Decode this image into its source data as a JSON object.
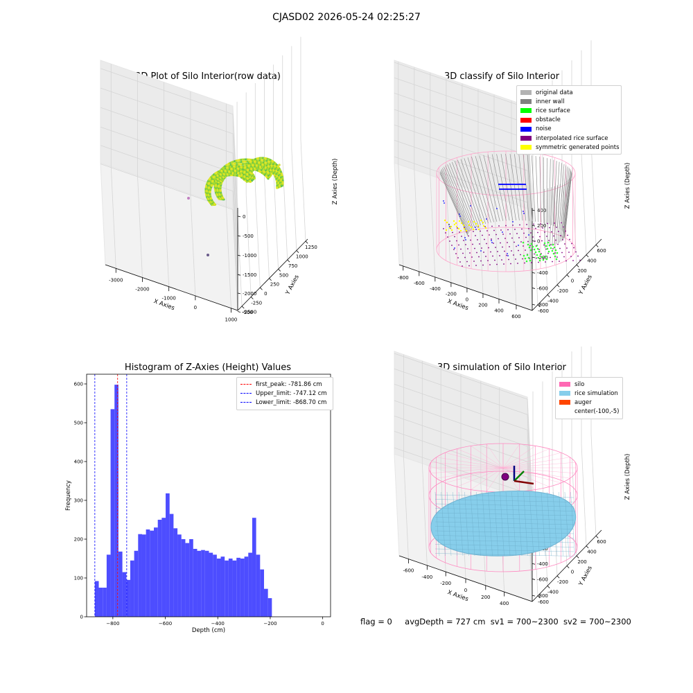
{
  "suptitle": "CJASD02 2026-05-24 02:25:27",
  "panels": {
    "raw": {
      "title": "3D Plot of Silo Interior(row data)",
      "xlabel": "X Axies",
      "ylabel": "Y Axies",
      "zlabel": "Z Axies (Depth)",
      "xticks": [
        "-3000",
        "-2000",
        "-1000",
        "0",
        "1000"
      ],
      "yticks": [
        "-500",
        "-250",
        "0",
        "250",
        "500",
        "750",
        "1000",
        "1250"
      ],
      "zticks": [
        "0",
        "-500",
        "-1000",
        "-1500",
        "-2000",
        "-2500"
      ]
    },
    "classify": {
      "title": "3D classify of Silo Interior",
      "xlabel": "X Axies",
      "ylabel": "Y Axies",
      "zlabel": "Z Axies (Depth)",
      "xticks": [
        "-800",
        "-600",
        "-400",
        "-200",
        "0",
        "200",
        "400",
        "600"
      ],
      "yticks": [
        "-600",
        "-400",
        "-200",
        "0",
        "200",
        "400",
        "600"
      ],
      "zticks": [
        "400",
        "200",
        "0",
        "-200",
        "-400",
        "-600",
        "-800"
      ],
      "legend": [
        {
          "label": "original data",
          "color": "#b3b3b3"
        },
        {
          "label": "inner wall",
          "color": "#808080"
        },
        {
          "label": "rice surface",
          "color": "#00ff00"
        },
        {
          "label": "obstacle",
          "color": "#ff0000"
        },
        {
          "label": "noise",
          "color": "#0000ff"
        },
        {
          "label": "interpolated rice surface",
          "color": "#800080"
        },
        {
          "label": "symmetric generated points",
          "color": "#ffff00"
        }
      ]
    },
    "simulation": {
      "title": "3D simulation of Silo Interior",
      "xlabel": "X Axies",
      "ylabel": "Y Axies",
      "zlabel": "Z Axies (Depth)",
      "xticks": [
        "-600",
        "-400",
        "-200",
        "0",
        "200",
        "400"
      ],
      "yticks": [
        "-600",
        "-400",
        "-200",
        "0",
        "200",
        "400",
        "600"
      ],
      "zticks": [
        "400",
        "200",
        "0",
        "-200",
        "-400",
        "-600",
        "-800"
      ],
      "legend": [
        {
          "label": "silo",
          "color": "#ff69b4"
        },
        {
          "label": "rice simulation",
          "color": "#87ceeb"
        },
        {
          "label": "auger",
          "color": "#ff4500"
        },
        {
          "label": "center(-100,-5)",
          "color": ""
        }
      ]
    }
  },
  "chart_data": {
    "type": "bar",
    "title": "Histogram of Z-Axies (Height) Values",
    "xlabel": "Depth (cm)",
    "ylabel": "Frequency",
    "xlim": [
      -900,
      30
    ],
    "ylim": [
      0,
      625
    ],
    "xticks": [
      -800,
      -600,
      -400,
      -200,
      0
    ],
    "yticks": [
      0,
      100,
      200,
      300,
      400,
      500,
      600
    ],
    "bin_start": -868.7,
    "bin_width": 15,
    "color": "#4d4dff",
    "values": [
      92,
      75,
      75,
      160,
      535,
      598,
      168,
      115,
      95,
      145,
      170,
      213,
      212,
      225,
      222,
      230,
      250,
      255,
      318,
      265,
      228,
      212,
      200,
      190,
      200,
      175,
      170,
      172,
      170,
      165,
      160,
      150,
      155,
      145,
      150,
      145,
      152,
      150,
      155,
      165,
      255,
      160,
      122,
      72,
      48
    ],
    "lines": [
      {
        "label": "first_peak: -781.86 cm",
        "x": -781.86,
        "color": "#ff0000"
      },
      {
        "label": "Upper_limit: -747.12 cm",
        "x": -747.12,
        "color": "#0000ff"
      },
      {
        "label": "Lower_limit: -868.70 cm",
        "x": -868.7,
        "color": "#0000ff"
      }
    ]
  },
  "footer": {
    "flag": "flag = 0",
    "avg": "avgDepth = 727 cm",
    "sv1": "sv1 = 700~2300",
    "sv2": "sv2 = 700~2300"
  }
}
